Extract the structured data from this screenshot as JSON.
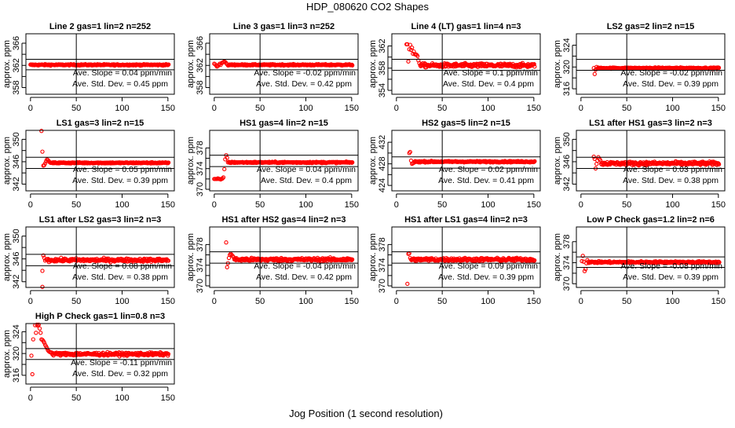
{
  "title": "HDP_080620  CO2 Shapes",
  "xlabel": "Jog Position (1 second resolution)",
  "chart_data": [
    {
      "type": "scatter",
      "title": "Line 2 gas=1 lin=2 n=252",
      "ylabel": "approx. ppm",
      "xlim": [
        -5,
        157
      ],
      "ylim": [
        356.8,
        367.7
      ],
      "xticks": [
        0,
        50,
        100,
        150
      ],
      "yticks": [
        358,
        360,
        362,
        364,
        366
      ],
      "ylabels": [
        358,
        362,
        366
      ],
      "hlines": [
        361.2,
        363.1
      ],
      "vline": 50,
      "slope": "Ave. Slope =  0.04  ppm/min",
      "stddev": "Ave. Std. Dev. =  0.45  ppm",
      "baseline": 362.1,
      "noise": 0.08,
      "x_range": [
        0,
        151
      ],
      "early": []
    },
    {
      "type": "scatter",
      "title": "Line 3 gas=1 lin=3 n=252",
      "ylabel": "approx. ppm",
      "xlim": [
        -5,
        157
      ],
      "ylim": [
        356.8,
        367.7
      ],
      "xticks": [
        0,
        50,
        100,
        150
      ],
      "yticks": [
        358,
        360,
        362,
        364,
        366
      ],
      "ylabels": [
        358,
        362,
        366
      ],
      "hlines": [
        361.2,
        363.1
      ],
      "vline": 50,
      "slope": "Ave. Slope =  -0.02  ppm/min",
      "stddev": "Ave. Std. Dev. =  0.42  ppm",
      "baseline": 362.1,
      "noise": 0.08,
      "x_range": [
        16,
        151
      ],
      "early": [
        [
          0,
          362.3
        ],
        [
          1,
          362.2
        ],
        [
          2,
          362.0
        ],
        [
          3,
          361.8
        ],
        [
          4,
          361.9
        ],
        [
          5,
          362.1
        ],
        [
          6,
          362.3
        ],
        [
          7,
          362.1
        ],
        [
          8,
          362.4
        ],
        [
          9,
          362.5
        ],
        [
          10,
          362.6
        ],
        [
          11,
          362.7
        ],
        [
          12,
          362.6
        ],
        [
          13,
          362.4
        ],
        [
          14,
          362.2
        ],
        [
          15,
          362.0
        ]
      ]
    },
    {
      "type": "scatter",
      "title": "Line 4 (LT) gas=1 lin=4 n=3",
      "ylabel": "approx. ppm",
      "xlim": [
        -5,
        157
      ],
      "ylim": [
        353.3,
        364.2
      ],
      "xticks": [
        0,
        50,
        100,
        150
      ],
      "yticks": [
        354,
        356,
        358,
        360,
        362
      ],
      "ylabels": [
        354,
        358,
        362
      ],
      "hlines": [
        357.6,
        359.6
      ],
      "vline": 50,
      "slope": "Ave. Slope =  0.1  ppm/min",
      "stddev": "Ave. Std. Dev. =  0.4  ppm",
      "baseline": 358.5,
      "noise": 0.25,
      "x_range": [
        26,
        151
      ],
      "early": [
        [
          11,
          362.3
        ],
        [
          12,
          362.3
        ],
        [
          13,
          359.2
        ],
        [
          14,
          361.4
        ],
        [
          15,
          362.2
        ],
        [
          16,
          361.3
        ],
        [
          17,
          361.7
        ],
        [
          18,
          360.6
        ],
        [
          19,
          361.0
        ],
        [
          20,
          360.5
        ],
        [
          21,
          360.5
        ],
        [
          22,
          360.4
        ],
        [
          23,
          360.2
        ],
        [
          24,
          359.4
        ],
        [
          25,
          358.9
        ]
      ]
    },
    {
      "type": "scatter",
      "title": "LS2 gas=2 lin=2 n=15",
      "ylabel": "approx. ppm",
      "xlim": [
        -5,
        157
      ],
      "ylim": [
        315.0,
        326.1
      ],
      "xticks": [
        0,
        50,
        100,
        150
      ],
      "yticks": [
        316,
        318,
        320,
        322,
        324
      ],
      "ylabels": [
        316,
        320,
        324
      ],
      "hlines": [
        319.4,
        321.4
      ],
      "vline": 50,
      "slope": "Ave. Slope =  -0.02  ppm/min",
      "stddev": "Ave. Std. Dev. =  0.39  ppm",
      "baseline": 319.8,
      "noise": 0.08,
      "x_range": [
        18,
        151
      ],
      "early": [
        [
          14,
          319.8
        ],
        [
          15,
          318.7
        ],
        [
          16,
          319.5
        ],
        [
          17,
          320.0
        ]
      ]
    },
    {
      "type": "scatter",
      "title": "LS1 gas=3 lin=2 n=15",
      "ylabel": "approx. ppm",
      "xlim": [
        -5,
        157
      ],
      "ylim": [
        340.8,
        351.6
      ],
      "xticks": [
        0,
        50,
        100,
        150
      ],
      "yticks": [
        342,
        344,
        346,
        348,
        350
      ],
      "ylabels": [
        342,
        346,
        350
      ],
      "hlines": [
        344.8,
        346.8
      ],
      "vline": 50,
      "slope": "Ave. Slope =  0.05  ppm/min",
      "stddev": "Ave. Std. Dev. =  0.39  ppm",
      "baseline": 345.8,
      "noise": 0.08,
      "x_range": [
        22,
        151
      ],
      "early": [
        [
          12,
          351.5
        ],
        [
          13,
          347.8
        ],
        [
          14,
          345.3
        ],
        [
          15,
          345.4
        ],
        [
          16,
          345.7
        ],
        [
          17,
          346.1
        ],
        [
          18,
          346.4
        ],
        [
          19,
          346.3
        ],
        [
          20,
          346.1
        ],
        [
          21,
          345.9
        ]
      ]
    },
    {
      "type": "scatter",
      "title": "HS1 gas=4 lin=2 n=15",
      "ylabel": "approx. ppm",
      "xlim": [
        -5,
        157
      ],
      "ylim": [
        369.7,
        381.4
      ],
      "xticks": [
        0,
        50,
        100,
        150
      ],
      "yticks": [
        370,
        372,
        374,
        376,
        378
      ],
      "ylabels": [
        370,
        374,
        378
      ],
      "hlines": [
        374.4,
        376.6
      ],
      "vline": 50,
      "slope": "Ave. Slope =  0.04  ppm/min",
      "stddev": "Ave. Std. Dev. =  0.4  ppm",
      "baseline": 375.2,
      "noise": 0.09,
      "x_range": [
        16,
        151
      ],
      "early": [
        [
          0,
          372
        ],
        [
          1,
          372
        ],
        [
          2,
          372
        ],
        [
          3,
          372
        ],
        [
          4,
          372.1
        ],
        [
          5,
          372
        ],
        [
          6,
          372
        ],
        [
          7,
          371.9
        ],
        [
          8,
          372
        ],
        [
          9,
          372.1
        ],
        [
          10,
          372.3
        ],
        [
          11,
          373.9
        ],
        [
          12,
          375.8
        ],
        [
          13,
          376.6
        ],
        [
          14,
          376.1
        ],
        [
          15,
          375.2
        ]
      ]
    },
    {
      "type": "scatter",
      "title": "HS2 gas=5 lin=2 n=15",
      "ylabel": "approx. ppm",
      "xlim": [
        -5,
        157
      ],
      "ylim": [
        423.0,
        434.2
      ],
      "xticks": [
        0,
        50,
        100,
        150
      ],
      "yticks": [
        424,
        426,
        428,
        430,
        432
      ],
      "ylabels": [
        424,
        428,
        432
      ],
      "hlines": [
        427.2,
        429.3
      ],
      "vline": 50,
      "slope": "Ave. Slope =  0.02  ppm/min",
      "stddev": "Ave. Std. Dev. =  0.41  ppm",
      "baseline": 428.4,
      "noise": 0.09,
      "x_range": [
        20,
        151
      ],
      "early": [
        [
          14,
          430.0
        ],
        [
          15,
          430.2
        ],
        [
          16,
          428.6
        ],
        [
          17,
          428.0
        ],
        [
          18,
          428.1
        ],
        [
          19,
          428.2
        ]
      ]
    },
    {
      "type": "scatter",
      "title": "LS1 after HS1 gas=3 lin=2 n=3",
      "ylabel": "approx. ppm",
      "xlim": [
        -5,
        157
      ],
      "ylim": [
        340.8,
        351.6
      ],
      "xticks": [
        0,
        50,
        100,
        150
      ],
      "yticks": [
        342,
        344,
        346,
        348,
        350
      ],
      "ylabels": [
        342,
        346,
        350
      ],
      "hlines": [
        344.8,
        346.8
      ],
      "vline": 50,
      "slope": "Ave. Slope =  0.03  ppm/min",
      "stddev": "Ave. Std. Dev. =  0.38  ppm",
      "baseline": 345.7,
      "noise": 0.22,
      "x_range": [
        22,
        151
      ],
      "early": [
        [
          14,
          346.9
        ],
        [
          15,
          346.5
        ],
        [
          16,
          344.8
        ],
        [
          17,
          345.6
        ],
        [
          18,
          346.2
        ],
        [
          19,
          346.8
        ],
        [
          20,
          346.5
        ],
        [
          21,
          346.3
        ]
      ]
    },
    {
      "type": "scatter",
      "title": "LS1 after LS2 gas=3 lin=2 n=3",
      "ylabel": "approx. ppm",
      "xlim": [
        -5,
        157
      ],
      "ylim": [
        341.0,
        351.6
      ],
      "xticks": [
        0,
        50,
        100,
        150
      ],
      "yticks": [
        342,
        344,
        346,
        348,
        350
      ],
      "ylabels": [
        342,
        346,
        350
      ],
      "hlines": [
        344.8,
        346.8
      ],
      "vline": 50,
      "slope": "Ave. Slope =  0.08  ppm/min",
      "stddev": "Ave. Std. Dev. =  0.38  ppm",
      "baseline": 345.8,
      "noise": 0.2,
      "x_range": [
        18,
        151
      ],
      "early": [
        [
          13,
          343.9
        ],
        [
          13,
          341.1
        ],
        [
          14,
          346.6
        ],
        [
          15,
          346.2
        ],
        [
          16,
          345.7
        ],
        [
          17,
          345.9
        ]
      ]
    },
    {
      "type": "scatter",
      "title": "HS1 after HS2 gas=4 lin=2 n=3",
      "ylabel": "approx. ppm",
      "xlim": [
        -5,
        157
      ],
      "ylim": [
        369.7,
        381.4
      ],
      "xticks": [
        0,
        50,
        100,
        150
      ],
      "yticks": [
        370,
        372,
        374,
        376,
        378
      ],
      "ylabels": [
        370,
        374,
        378
      ],
      "hlines": [
        374.4,
        376.6
      ],
      "vline": 50,
      "slope": "Ave. Slope =  -0.04  ppm/min",
      "stddev": "Ave. Std. Dev. =  0.42  ppm",
      "baseline": 375.1,
      "noise": 0.22,
      "x_range": [
        22,
        151
      ],
      "early": [
        [
          13,
          378.4
        ],
        [
          14,
          373.6
        ],
        [
          15,
          374.4
        ],
        [
          16,
          375.4
        ],
        [
          17,
          376.0
        ],
        [
          18,
          376.2
        ],
        [
          19,
          376.0
        ],
        [
          20,
          375.8
        ],
        [
          21,
          375.6
        ]
      ]
    },
    {
      "type": "scatter",
      "title": "HS1 after LS1 gas=4 lin=2 n=3",
      "ylabel": "approx. ppm",
      "xlim": [
        -5,
        157
      ],
      "ylim": [
        369.7,
        381.4
      ],
      "xticks": [
        0,
        50,
        100,
        150
      ],
      "yticks": [
        370,
        372,
        374,
        376,
        378
      ],
      "ylabels": [
        370,
        374,
        378
      ],
      "hlines": [
        374.4,
        376.6
      ],
      "vline": 50,
      "slope": "Ave. Slope =  0.09  ppm/min",
      "stddev": "Ave. Std. Dev. =  0.39  ppm",
      "baseline": 375.1,
      "noise": 0.22,
      "x_range": [
        16,
        151
      ],
      "early": [
        [
          12,
          370.4
        ],
        [
          13,
          376.2
        ],
        [
          14,
          376.3
        ],
        [
          15,
          375.4
        ]
      ]
    },
    {
      "type": "scatter",
      "title": "Low P Check gas=1.2 lin=2 n=6",
      "ylabel": "approx. ppm",
      "xlim": [
        -5,
        157
      ],
      "ylim": [
        369.3,
        380.8
      ],
      "xticks": [
        0,
        50,
        100,
        150
      ],
      "yticks": [
        370,
        372,
        374,
        376,
        378
      ],
      "ylabels": [
        370,
        374,
        378
      ],
      "hlines": [
        373.1,
        375.1
      ],
      "vline": 50,
      "slope": "Ave. Slope =  -0.08  ppm/min",
      "stddev": "Ave. Std. Dev. =  0.39  ppm",
      "baseline": 374.1,
      "noise": 0.12,
      "x_range": [
        8,
        151
      ],
      "early": [
        [
          1,
          374.3
        ],
        [
          2,
          375.3
        ],
        [
          3,
          374.2
        ],
        [
          4,
          372.4
        ],
        [
          5,
          372.8
        ],
        [
          6,
          373.9
        ],
        [
          7,
          374.5
        ]
      ]
    },
    {
      "type": "scatter",
      "title": "High P Check gas=1 lin=0.8 n=3",
      "ylabel": "approx. ppm",
      "xlim": [
        -5,
        157
      ],
      "ylim": [
        314.4,
        325.5
      ],
      "xticks": [
        0,
        50,
        100,
        150
      ],
      "yticks": [
        316,
        318,
        320,
        322,
        324
      ],
      "ylabels": [
        316,
        320,
        324
      ],
      "hlines": [
        318.9,
        320.9
      ],
      "vline": 50,
      "slope": "Ave. Slope =  -0.11  ppm/min",
      "stddev": "Ave. Std. Dev. =  0.32  ppm",
      "baseline": 319.9,
      "noise": 0.2,
      "x_range": [
        24,
        151
      ],
      "early": [
        [
          1,
          319.6
        ],
        [
          2,
          316.2
        ],
        [
          3,
          322.6
        ],
        [
          5,
          325.2
        ],
        [
          6,
          323.8
        ],
        [
          7,
          325.3
        ],
        [
          8,
          325.1
        ],
        [
          9,
          325.3
        ],
        [
          10,
          324.6
        ],
        [
          11,
          323.8
        ],
        [
          12,
          322.6
        ],
        [
          13,
          322.5
        ],
        [
          14,
          322.3
        ],
        [
          15,
          322.0
        ],
        [
          16,
          321.6
        ],
        [
          17,
          321.3
        ],
        [
          18,
          321.0
        ],
        [
          19,
          320.6
        ],
        [
          20,
          320.4
        ],
        [
          21,
          320.3
        ],
        [
          22,
          320.2
        ],
        [
          23,
          320.2
        ]
      ]
    }
  ]
}
